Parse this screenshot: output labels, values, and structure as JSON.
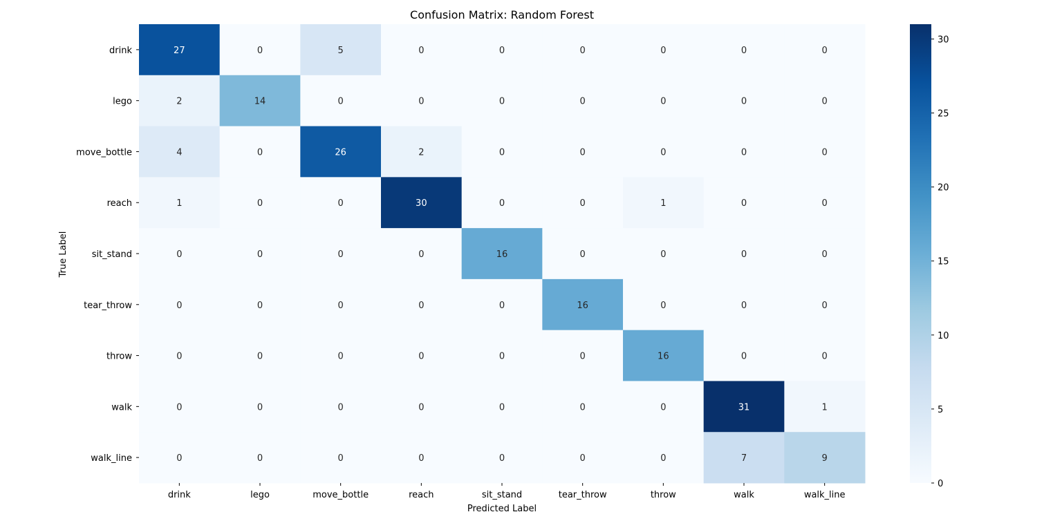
{
  "chart_data": {
    "type": "heatmap",
    "title": "Confusion Matrix: Random Forest",
    "xlabel": "Predicted Label",
    "ylabel": "True Label",
    "x_categories": [
      "drink",
      "lego",
      "move_bottle",
      "reach",
      "sit_stand",
      "tear_throw",
      "throw",
      "walk",
      "walk_line"
    ],
    "y_categories": [
      "drink",
      "lego",
      "move_bottle",
      "reach",
      "sit_stand",
      "tear_throw",
      "throw",
      "walk",
      "walk_line"
    ],
    "values": [
      [
        27,
        0,
        5,
        0,
        0,
        0,
        0,
        0,
        0
      ],
      [
        2,
        14,
        0,
        0,
        0,
        0,
        0,
        0,
        0
      ],
      [
        4,
        0,
        26,
        2,
        0,
        0,
        0,
        0,
        0
      ],
      [
        1,
        0,
        0,
        30,
        0,
        0,
        1,
        0,
        0
      ],
      [
        0,
        0,
        0,
        0,
        16,
        0,
        0,
        0,
        0
      ],
      [
        0,
        0,
        0,
        0,
        0,
        16,
        0,
        0,
        0
      ],
      [
        0,
        0,
        0,
        0,
        0,
        0,
        16,
        0,
        0
      ],
      [
        0,
        0,
        0,
        0,
        0,
        0,
        0,
        31,
        1
      ],
      [
        0,
        0,
        0,
        0,
        0,
        0,
        0,
        7,
        9
      ]
    ],
    "colormap": "Blues",
    "color_range": [
      0,
      31
    ],
    "colorbar": {
      "ticks": [
        0,
        5,
        10,
        15,
        20,
        25,
        30
      ]
    },
    "grid": false
  }
}
